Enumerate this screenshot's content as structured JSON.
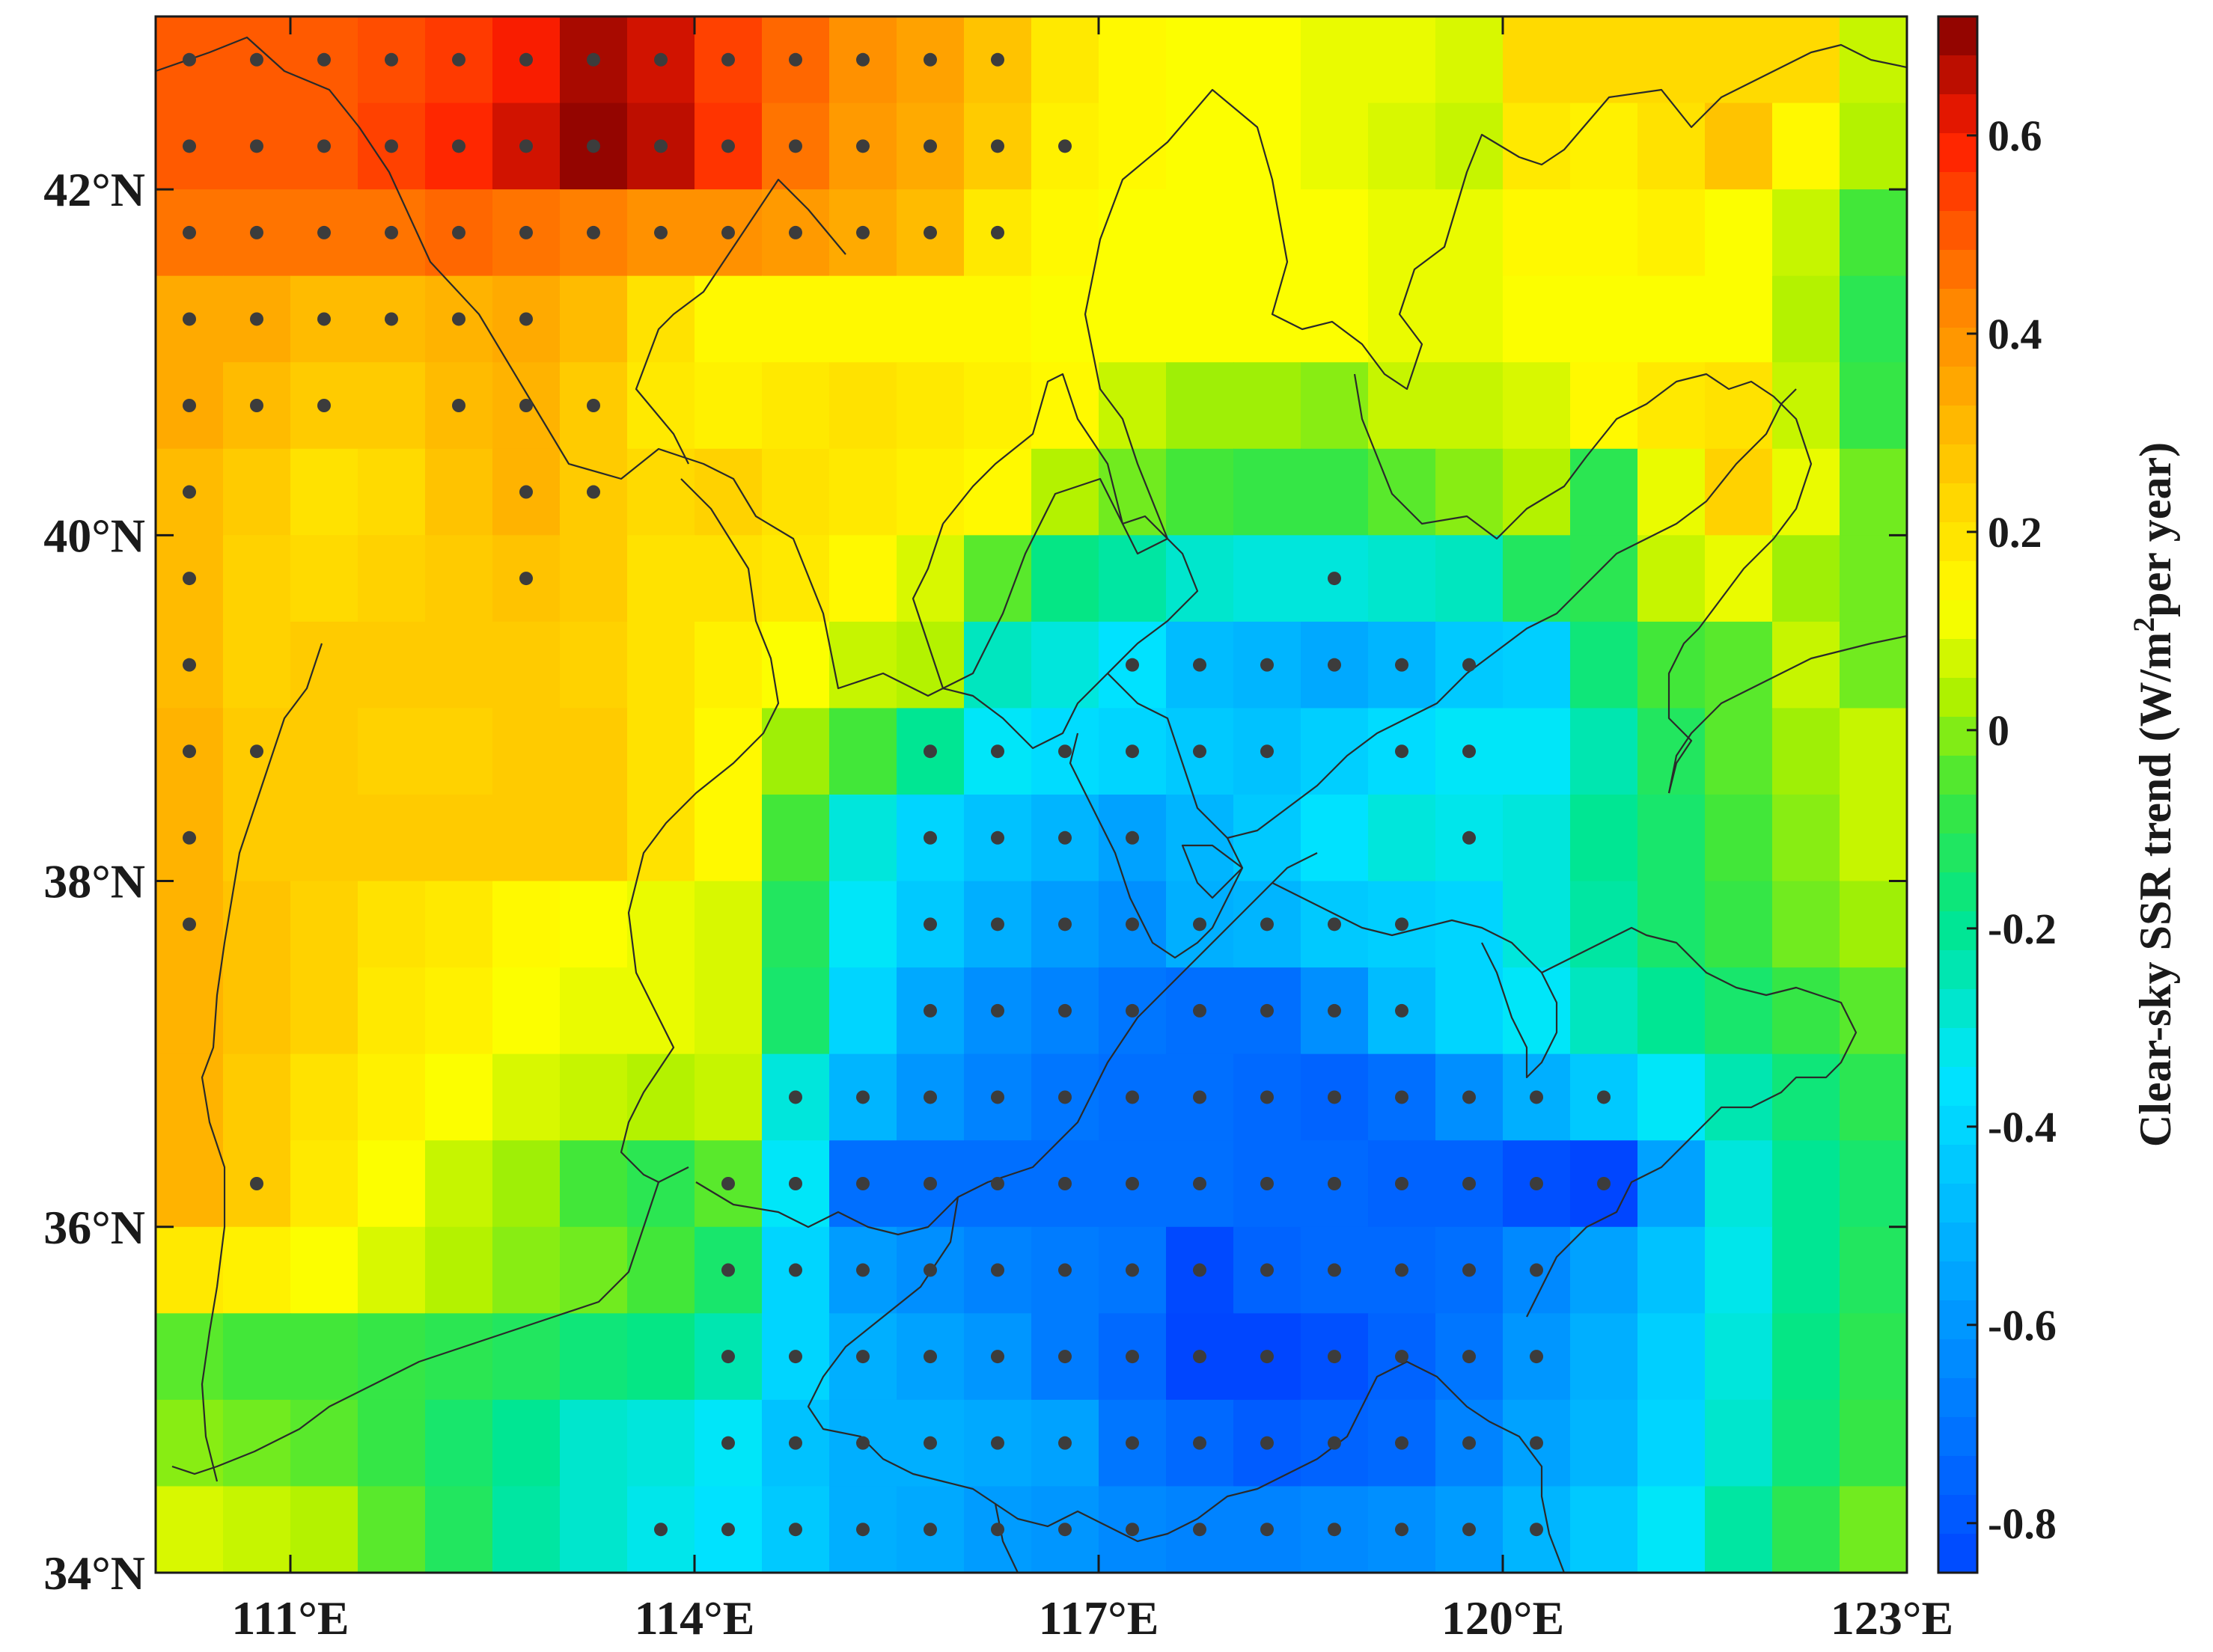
{
  "chart_data": {
    "type": "heatmap",
    "xlabel": "",
    "ylabel": "",
    "x_ticks": [
      {
        "value": 111,
        "label": "111°E"
      },
      {
        "value": 114,
        "label": "114°E"
      },
      {
        "value": 117,
        "label": "117°E"
      },
      {
        "value": 120,
        "label": "120°E"
      },
      {
        "value": 123,
        "label": "123°E"
      }
    ],
    "y_ticks": [
      {
        "value": 34,
        "label": "34°N"
      },
      {
        "value": 36,
        "label": "36°N"
      },
      {
        "value": 38,
        "label": "38°N"
      },
      {
        "value": 40,
        "label": "40°N"
      },
      {
        "value": 42,
        "label": "42°N"
      }
    ],
    "xlim": [
      110,
      123
    ],
    "ylim": [
      34,
      43
    ],
    "colorbar": {
      "label_main": "Clear-sky SSR trend (W/m",
      "label_sup": "2",
      "label_end": "per year)",
      "range": [
        -0.85,
        0.72
      ],
      "ticks": [
        {
          "value": 0.6,
          "label": "0.6"
        },
        {
          "value": 0.4,
          "label": "0.4"
        },
        {
          "value": 0.2,
          "label": "0.2"
        },
        {
          "value": 0,
          "label": "0"
        },
        {
          "value": -0.2,
          "label": "-0.2"
        },
        {
          "value": -0.4,
          "label": "-0.4"
        },
        {
          "value": -0.6,
          "label": "-0.6"
        },
        {
          "value": -0.8,
          "label": "-0.8"
        }
      ]
    },
    "grid": {
      "lon_start": 110,
      "lon_step": 0.5,
      "lat_top": 43,
      "lat_step": 0.5,
      "cols": 26,
      "rows": 18,
      "values_desc": "rows listed from north (top) to south (bottom), columns from west to east",
      "values": [
        [
          0.5,
          0.5,
          0.5,
          0.52,
          0.55,
          0.6,
          0.68,
          0.64,
          0.54,
          0.48,
          0.4,
          0.36,
          0.28,
          0.18,
          0.14,
          0.12,
          0.12,
          0.1,
          0.1,
          0.08,
          0.22,
          0.22,
          0.22,
          0.22,
          0.22,
          0.06
        ],
        [
          0.5,
          0.5,
          0.5,
          0.54,
          0.58,
          0.64,
          0.7,
          0.66,
          0.56,
          0.46,
          0.38,
          0.34,
          0.26,
          0.16,
          0.14,
          0.12,
          0.12,
          0.1,
          0.08,
          0.06,
          0.18,
          0.16,
          0.2,
          0.28,
          0.14,
          0.04
        ],
        [
          0.46,
          0.46,
          0.46,
          0.46,
          0.48,
          0.46,
          0.44,
          0.4,
          0.4,
          0.38,
          0.34,
          0.3,
          0.18,
          0.14,
          0.12,
          0.12,
          0.12,
          0.12,
          0.1,
          0.1,
          0.14,
          0.14,
          0.16,
          0.12,
          0.06,
          -0.06
        ],
        [
          0.34,
          0.34,
          0.3,
          0.3,
          0.32,
          0.34,
          0.3,
          0.2,
          0.14,
          0.14,
          0.14,
          0.14,
          0.14,
          0.12,
          0.12,
          0.12,
          0.12,
          0.12,
          0.1,
          0.1,
          0.12,
          0.12,
          0.12,
          0.12,
          0.04,
          -0.1
        ],
        [
          0.34,
          0.3,
          0.26,
          0.26,
          0.3,
          0.32,
          0.26,
          0.18,
          0.16,
          0.18,
          0.2,
          0.18,
          0.16,
          0.14,
          0.06,
          0.02,
          0.02,
          0.0,
          0.06,
          0.06,
          0.08,
          0.14,
          0.18,
          0.2,
          0.06,
          -0.08
        ],
        [
          0.3,
          0.26,
          0.2,
          0.22,
          0.28,
          0.32,
          0.26,
          0.22,
          0.24,
          0.2,
          0.18,
          0.16,
          0.14,
          0.04,
          -0.02,
          -0.06,
          -0.08,
          -0.08,
          -0.04,
          0.0,
          0.04,
          -0.1,
          0.1,
          0.24,
          0.1,
          -0.02
        ],
        [
          0.3,
          0.24,
          0.22,
          0.24,
          0.26,
          0.28,
          0.26,
          0.2,
          0.2,
          0.18,
          0.14,
          0.08,
          -0.04,
          -0.18,
          -0.22,
          -0.28,
          -0.3,
          -0.3,
          -0.28,
          -0.26,
          -0.12,
          -0.1,
          0.06,
          0.1,
          0.02,
          -0.02
        ],
        [
          0.3,
          0.24,
          0.26,
          0.26,
          0.26,
          0.26,
          0.24,
          0.2,
          0.16,
          0.12,
          0.06,
          0.04,
          -0.26,
          -0.3,
          -0.36,
          -0.48,
          -0.5,
          -0.54,
          -0.5,
          -0.44,
          -0.42,
          -0.16,
          -0.06,
          -0.04,
          0.06,
          -0.02
        ],
        [
          0.32,
          0.26,
          0.26,
          0.24,
          0.24,
          0.26,
          0.26,
          0.2,
          0.14,
          0.02,
          -0.06,
          -0.2,
          -0.34,
          -0.38,
          -0.4,
          -0.44,
          -0.46,
          -0.42,
          -0.38,
          -0.34,
          -0.34,
          -0.24,
          -0.12,
          -0.04,
          0.02,
          0.06
        ],
        [
          0.32,
          0.26,
          0.26,
          0.26,
          0.26,
          0.26,
          0.26,
          0.2,
          0.14,
          -0.06,
          -0.3,
          -0.4,
          -0.46,
          -0.5,
          -0.56,
          -0.5,
          -0.44,
          -0.36,
          -0.3,
          -0.32,
          -0.3,
          -0.2,
          -0.14,
          -0.06,
          0.0,
          0.06
        ],
        [
          0.32,
          0.28,
          0.24,
          0.2,
          0.18,
          0.14,
          0.12,
          0.1,
          0.08,
          -0.12,
          -0.34,
          -0.44,
          -0.52,
          -0.58,
          -0.62,
          -0.52,
          -0.5,
          -0.44,
          -0.42,
          -0.4,
          -0.3,
          -0.22,
          -0.14,
          -0.08,
          -0.02,
          0.02
        ],
        [
          0.32,
          0.28,
          0.24,
          0.18,
          0.16,
          0.12,
          0.1,
          0.1,
          0.08,
          -0.14,
          -0.4,
          -0.54,
          -0.62,
          -0.66,
          -0.7,
          -0.72,
          -0.72,
          -0.62,
          -0.48,
          -0.4,
          -0.34,
          -0.26,
          -0.2,
          -0.14,
          -0.08,
          -0.04
        ],
        [
          0.32,
          0.26,
          0.2,
          0.16,
          0.12,
          0.08,
          0.06,
          0.04,
          0.06,
          -0.3,
          -0.5,
          -0.6,
          -0.66,
          -0.7,
          -0.72,
          -0.72,
          -0.74,
          -0.76,
          -0.72,
          -0.62,
          -0.52,
          -0.44,
          -0.34,
          -0.24,
          -0.16,
          -0.1
        ],
        [
          0.32,
          0.26,
          0.18,
          0.12,
          0.06,
          0.02,
          -0.06,
          -0.1,
          -0.04,
          -0.34,
          -0.72,
          -0.72,
          -0.72,
          -0.72,
          -0.72,
          -0.72,
          -0.74,
          -0.74,
          -0.76,
          -0.76,
          -0.82,
          -0.86,
          -0.56,
          -0.3,
          -0.2,
          -0.14
        ],
        [
          0.18,
          0.16,
          0.12,
          0.08,
          0.04,
          0.0,
          -0.02,
          -0.06,
          -0.14,
          -0.4,
          -0.58,
          -0.62,
          -0.66,
          -0.68,
          -0.7,
          -0.84,
          -0.76,
          -0.74,
          -0.74,
          -0.72,
          -0.64,
          -0.56,
          -0.46,
          -0.32,
          -0.2,
          -0.12
        ],
        [
          -0.04,
          -0.06,
          -0.06,
          -0.08,
          -0.1,
          -0.12,
          -0.16,
          -0.18,
          -0.24,
          -0.4,
          -0.52,
          -0.56,
          -0.6,
          -0.68,
          -0.74,
          -0.88,
          -0.9,
          -0.82,
          -0.76,
          -0.7,
          -0.6,
          -0.52,
          -0.42,
          -0.3,
          -0.18,
          -0.1
        ],
        [
          0.0,
          -0.02,
          -0.04,
          -0.08,
          -0.14,
          -0.2,
          -0.28,
          -0.3,
          -0.34,
          -0.46,
          -0.52,
          -0.52,
          -0.54,
          -0.56,
          -0.7,
          -0.74,
          -0.78,
          -0.76,
          -0.74,
          -0.66,
          -0.56,
          -0.5,
          -0.4,
          -0.28,
          -0.16,
          -0.08
        ],
        [
          0.08,
          0.06,
          0.04,
          -0.04,
          -0.12,
          -0.22,
          -0.28,
          -0.32,
          -0.36,
          -0.44,
          -0.52,
          -0.54,
          -0.58,
          -0.6,
          -0.64,
          -0.66,
          -0.66,
          -0.64,
          -0.62,
          -0.58,
          -0.5,
          -0.44,
          -0.34,
          -0.22,
          -0.1,
          -0.02
        ]
      ]
    },
    "significance_points": [
      [
        0,
        0
      ],
      [
        1,
        0
      ],
      [
        2,
        0
      ],
      [
        3,
        0
      ],
      [
        4,
        0
      ],
      [
        5,
        0
      ],
      [
        6,
        0
      ],
      [
        7,
        0
      ],
      [
        8,
        0
      ],
      [
        9,
        0
      ],
      [
        10,
        0
      ],
      [
        11,
        0
      ],
      [
        12,
        0
      ],
      [
        0,
        1
      ],
      [
        1,
        1
      ],
      [
        2,
        1
      ],
      [
        3,
        1
      ],
      [
        4,
        1
      ],
      [
        5,
        1
      ],
      [
        6,
        1
      ],
      [
        7,
        1
      ],
      [
        8,
        1
      ],
      [
        9,
        1
      ],
      [
        10,
        1
      ],
      [
        11,
        1
      ],
      [
        12,
        1
      ],
      [
        13,
        1
      ],
      [
        0,
        2
      ],
      [
        1,
        2
      ],
      [
        2,
        2
      ],
      [
        3,
        2
      ],
      [
        4,
        2
      ],
      [
        5,
        2
      ],
      [
        6,
        2
      ],
      [
        7,
        2
      ],
      [
        8,
        2
      ],
      [
        9,
        2
      ],
      [
        10,
        2
      ],
      [
        11,
        2
      ],
      [
        12,
        2
      ],
      [
        0,
        3
      ],
      [
        1,
        3
      ],
      [
        2,
        3
      ],
      [
        3,
        3
      ],
      [
        4,
        3
      ],
      [
        5,
        3
      ],
      [
        0,
        4
      ],
      [
        1,
        4
      ],
      [
        2,
        4
      ],
      [
        4,
        4
      ],
      [
        5,
        4
      ],
      [
        6,
        4
      ],
      [
        0,
        5
      ],
      [
        5,
        5
      ],
      [
        6,
        5
      ],
      [
        0,
        6
      ],
      [
        5,
        6
      ],
      [
        17,
        6
      ],
      [
        0,
        7
      ],
      [
        14,
        7
      ],
      [
        15,
        7
      ],
      [
        16,
        7
      ],
      [
        17,
        7
      ],
      [
        18,
        7
      ],
      [
        19,
        7
      ],
      [
        0,
        8
      ],
      [
        1,
        8
      ],
      [
        11,
        8
      ],
      [
        12,
        8
      ],
      [
        13,
        8
      ],
      [
        14,
        8
      ],
      [
        15,
        8
      ],
      [
        16,
        8
      ],
      [
        18,
        8
      ],
      [
        19,
        8
      ],
      [
        0,
        9
      ],
      [
        11,
        9
      ],
      [
        12,
        9
      ],
      [
        13,
        9
      ],
      [
        14,
        9
      ],
      [
        19,
        9
      ],
      [
        0,
        10
      ],
      [
        11,
        10
      ],
      [
        12,
        10
      ],
      [
        13,
        10
      ],
      [
        14,
        10
      ],
      [
        15,
        10
      ],
      [
        16,
        10
      ],
      [
        17,
        10
      ],
      [
        18,
        10
      ],
      [
        11,
        11
      ],
      [
        12,
        11
      ],
      [
        13,
        11
      ],
      [
        14,
        11
      ],
      [
        15,
        11
      ],
      [
        16,
        11
      ],
      [
        17,
        11
      ],
      [
        18,
        11
      ],
      [
        9,
        12
      ],
      [
        10,
        12
      ],
      [
        11,
        12
      ],
      [
        12,
        12
      ],
      [
        13,
        12
      ],
      [
        14,
        12
      ],
      [
        15,
        12
      ],
      [
        16,
        12
      ],
      [
        17,
        12
      ],
      [
        18,
        12
      ],
      [
        19,
        12
      ],
      [
        20,
        12
      ],
      [
        21,
        12
      ],
      [
        1,
        13
      ],
      [
        8,
        13
      ],
      [
        9,
        13
      ],
      [
        10,
        13
      ],
      [
        11,
        13
      ],
      [
        12,
        13
      ],
      [
        13,
        13
      ],
      [
        14,
        13
      ],
      [
        15,
        13
      ],
      [
        16,
        13
      ],
      [
        17,
        13
      ],
      [
        18,
        13
      ],
      [
        19,
        13
      ],
      [
        20,
        13
      ],
      [
        21,
        13
      ],
      [
        8,
        14
      ],
      [
        9,
        14
      ],
      [
        10,
        14
      ],
      [
        11,
        14
      ],
      [
        12,
        14
      ],
      [
        13,
        14
      ],
      [
        14,
        14
      ],
      [
        15,
        14
      ],
      [
        16,
        14
      ],
      [
        17,
        14
      ],
      [
        18,
        14
      ],
      [
        19,
        14
      ],
      [
        20,
        14
      ],
      [
        8,
        15
      ],
      [
        9,
        15
      ],
      [
        10,
        15
      ],
      [
        11,
        15
      ],
      [
        12,
        15
      ],
      [
        13,
        15
      ],
      [
        14,
        15
      ],
      [
        15,
        15
      ],
      [
        16,
        15
      ],
      [
        17,
        15
      ],
      [
        18,
        15
      ],
      [
        19,
        15
      ],
      [
        20,
        15
      ],
      [
        8,
        16
      ],
      [
        9,
        16
      ],
      [
        10,
        16
      ],
      [
        11,
        16
      ],
      [
        12,
        16
      ],
      [
        13,
        16
      ],
      [
        14,
        16
      ],
      [
        15,
        16
      ],
      [
        16,
        16
      ],
      [
        17,
        16
      ],
      [
        18,
        16
      ],
      [
        19,
        16
      ],
      [
        20,
        16
      ],
      [
        7,
        17
      ],
      [
        8,
        17
      ],
      [
        9,
        17
      ],
      [
        10,
        17
      ],
      [
        11,
        17
      ],
      [
        12,
        17
      ],
      [
        13,
        17
      ],
      [
        14,
        17
      ],
      [
        15,
        17
      ],
      [
        16,
        17
      ],
      [
        17,
        17
      ],
      [
        18,
        17
      ],
      [
        19,
        17
      ],
      [
        20,
        17
      ]
    ]
  }
}
